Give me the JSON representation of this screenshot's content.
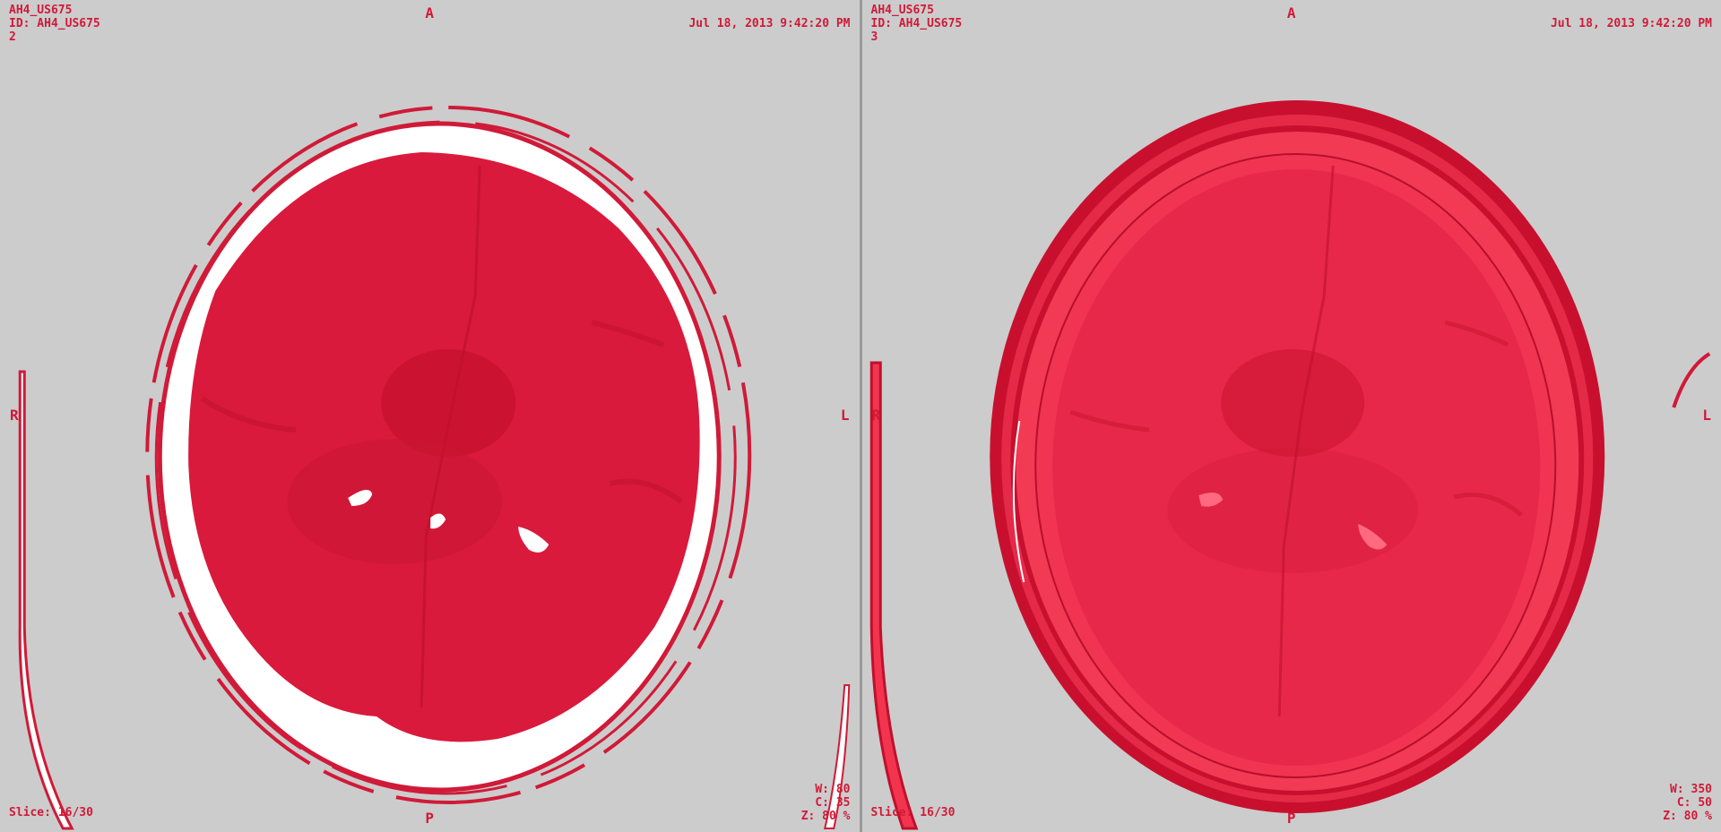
{
  "colors": {
    "background": "#cccccc",
    "overlay_text": "#d01a38",
    "accent_red": "#dc1f3f"
  },
  "viewports": [
    {
      "patient_name": "AH4_US675",
      "patient_id": "ID: AH4_US675",
      "series_number": "2",
      "datetime": "Jul 18, 2013 9:42:20 PM",
      "orientation": {
        "top": "A",
        "bottom": "P",
        "left": "R",
        "right": "L"
      },
      "slice": "Slice: 16/30",
      "window_width": "W: 80",
      "window_center": "C: 35",
      "zoom": "Z: 80 %"
    },
    {
      "patient_name": "AH4_US675",
      "patient_id": "ID: AH4_US675",
      "series_number": "3",
      "datetime": "Jul 18, 2013 9:42:20 PM",
      "orientation": {
        "top": "A",
        "bottom": "P",
        "left": "R",
        "right": "L"
      },
      "slice": "Slice: 16/30",
      "window_width": "W: 350",
      "window_center": "C: 50",
      "zoom": "Z: 80 %"
    }
  ]
}
